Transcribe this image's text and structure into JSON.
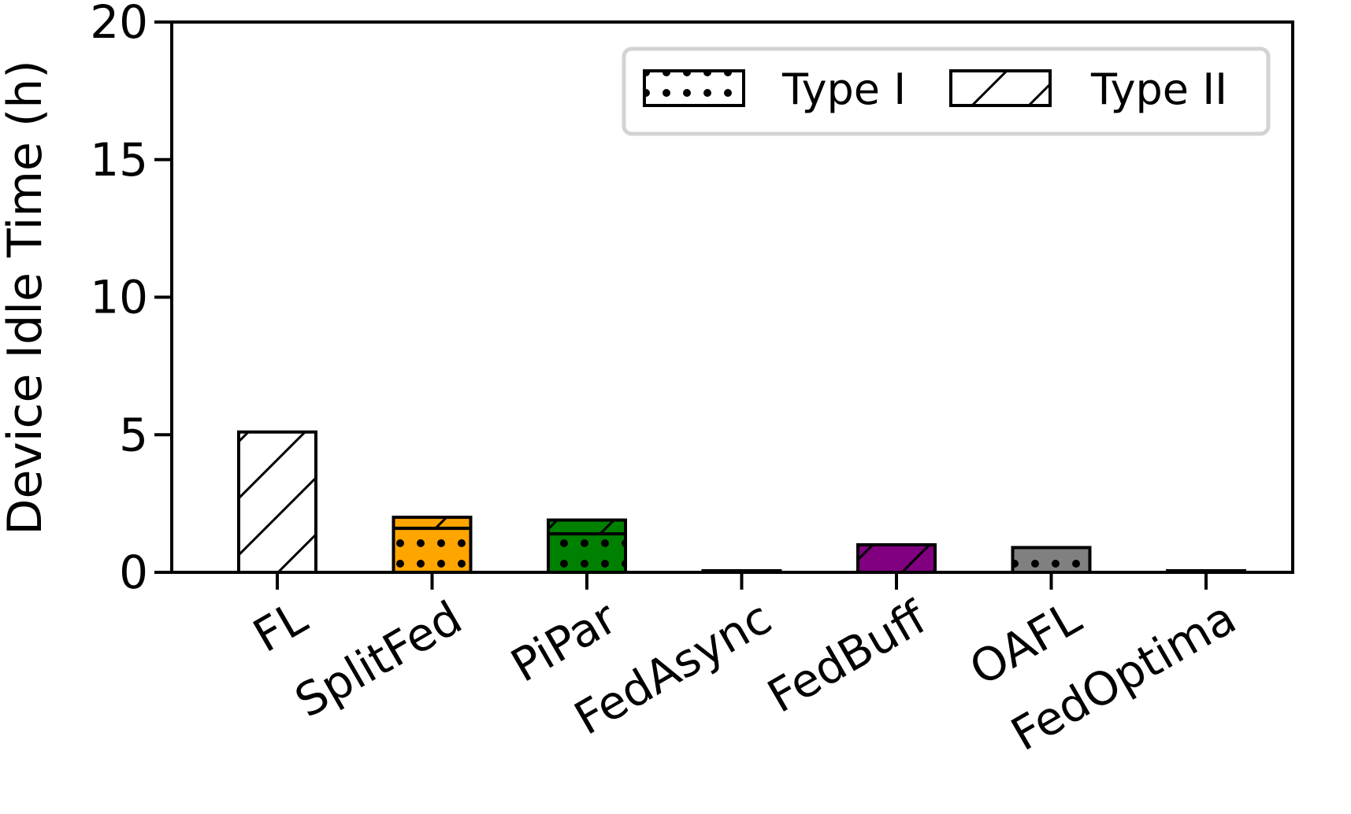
{
  "chart_data": {
    "type": "bar",
    "stacked": true,
    "title": "",
    "xlabel": "",
    "ylabel": "Device Idle Time (h)",
    "ylim": [
      0,
      20
    ],
    "yticks": [
      0,
      5,
      10,
      15,
      20
    ],
    "grid": false,
    "legend_position": "top-right",
    "categories": [
      "FL",
      "SplitFed",
      "PiPar",
      "FedAsync",
      "FedBuff",
      "OAFL",
      "FedOptima"
    ],
    "bar_colors": [
      "#ffffff",
      "#ffa500",
      "#008000",
      "#ffffff",
      "#800080",
      "#808080",
      "#ffffff"
    ],
    "series": [
      {
        "name": "Type I",
        "pattern": "dots",
        "values": [
          0,
          1.6,
          1.4,
          0,
          0,
          0.9,
          0
        ]
      },
      {
        "name": "Type II",
        "pattern": "hatch",
        "values": [
          5.1,
          0.4,
          0.5,
          0.05,
          1.0,
          0,
          0.05
        ]
      }
    ]
  }
}
